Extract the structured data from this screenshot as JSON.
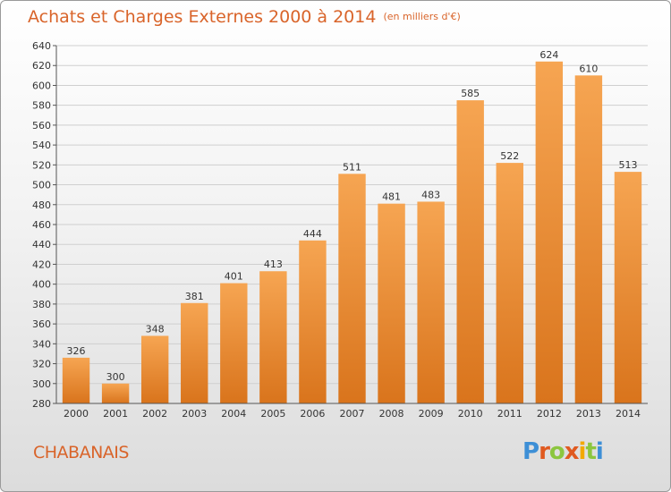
{
  "header": {
    "title": "Achats et Charges Externes 2000 à 2014",
    "unit": "(en milliers d'€)"
  },
  "footer": {
    "place": "CHABANAIS",
    "logo": "Proxiti"
  },
  "colors": {
    "bar_light": "#f6a552",
    "bar_dark": "#d9741c",
    "title": "#d9642a",
    "grid": "#cfcfcf"
  },
  "chart_data": {
    "type": "bar",
    "title": "Achats et Charges Externes 2000 à 2014",
    "subtitle": "(en milliers d'€)",
    "categories": [
      "2000",
      "2001",
      "2002",
      "2003",
      "2004",
      "2005",
      "2006",
      "2007",
      "2008",
      "2009",
      "2010",
      "2011",
      "2012",
      "2013",
      "2014"
    ],
    "values": [
      326,
      300,
      348,
      381,
      401,
      413,
      444,
      511,
      481,
      483,
      585,
      522,
      624,
      610,
      513
    ],
    "ylim": [
      280,
      640
    ],
    "yticks": [
      280,
      300,
      320,
      340,
      360,
      380,
      400,
      420,
      440,
      460,
      480,
      500,
      520,
      540,
      560,
      580,
      600,
      620,
      640
    ],
    "grid": true,
    "xlabel": "",
    "ylabel": ""
  }
}
